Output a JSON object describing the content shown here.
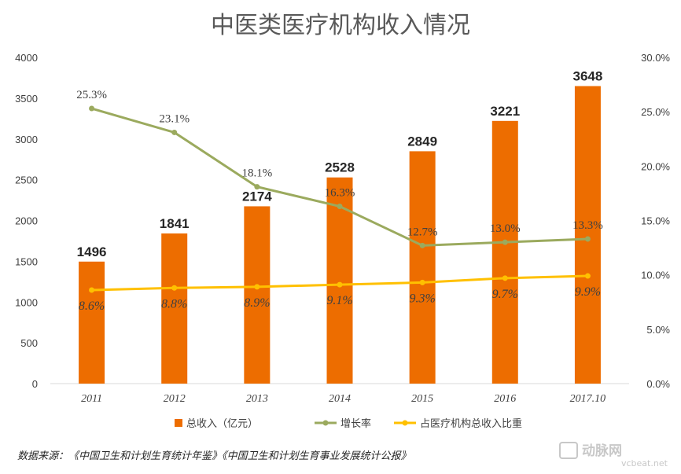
{
  "chart_data": {
    "type": "bar",
    "title": "中医类医疗机构收入情况",
    "categories": [
      "2011",
      "2012",
      "2013",
      "2014",
      "2015",
      "2016",
      "2017.10"
    ],
    "y_left": {
      "ticks": [
        "0",
        "500",
        "1000",
        "1500",
        "2000",
        "2500",
        "3000",
        "3500",
        "4000"
      ],
      "ylim": [
        0,
        4000
      ]
    },
    "y_right": {
      "ticks": [
        "0.0%",
        "5.0%",
        "10.0%",
        "15.0%",
        "20.0%",
        "25.0%",
        "30.0%"
      ],
      "ylim": [
        0,
        30
      ]
    },
    "series": [
      {
        "name": "总收入（亿元）",
        "type": "bar",
        "axis": "left",
        "color": "#ED6D00",
        "values": [
          1496,
          1841,
          2174,
          2528,
          2849,
          3221,
          3648
        ],
        "labels": [
          "1496",
          "1841",
          "2174",
          "2528",
          "2849",
          "3221",
          "3648"
        ]
      },
      {
        "name": "增长率",
        "type": "line",
        "axis": "right",
        "color": "#9BAA5E",
        "values": [
          25.3,
          23.1,
          18.1,
          16.3,
          12.7,
          13.0,
          13.3
        ],
        "labels": [
          "25.3%",
          "23.1%",
          "18.1%",
          "16.3%",
          "12.7%",
          "13.0%",
          "13.3%"
        ]
      },
      {
        "name": "占医疗机构总收入比重",
        "type": "line",
        "axis": "right",
        "color": "#FFC000",
        "values": [
          8.6,
          8.8,
          8.9,
          9.1,
          9.3,
          9.7,
          9.9
        ],
        "labels": [
          "8.6%",
          "8.8%",
          "8.9%",
          "9.1%",
          "9.3%",
          "9.7%",
          "9.9%"
        ]
      }
    ],
    "legend_position": "bottom",
    "grid": false
  },
  "source_note": "数据来源：《中国卫生和计划生育统计年鉴》《中国卫生和计划生育事业发展统计公报》",
  "watermark": {
    "brand": "动脉网",
    "url": "vcbeat.net"
  }
}
